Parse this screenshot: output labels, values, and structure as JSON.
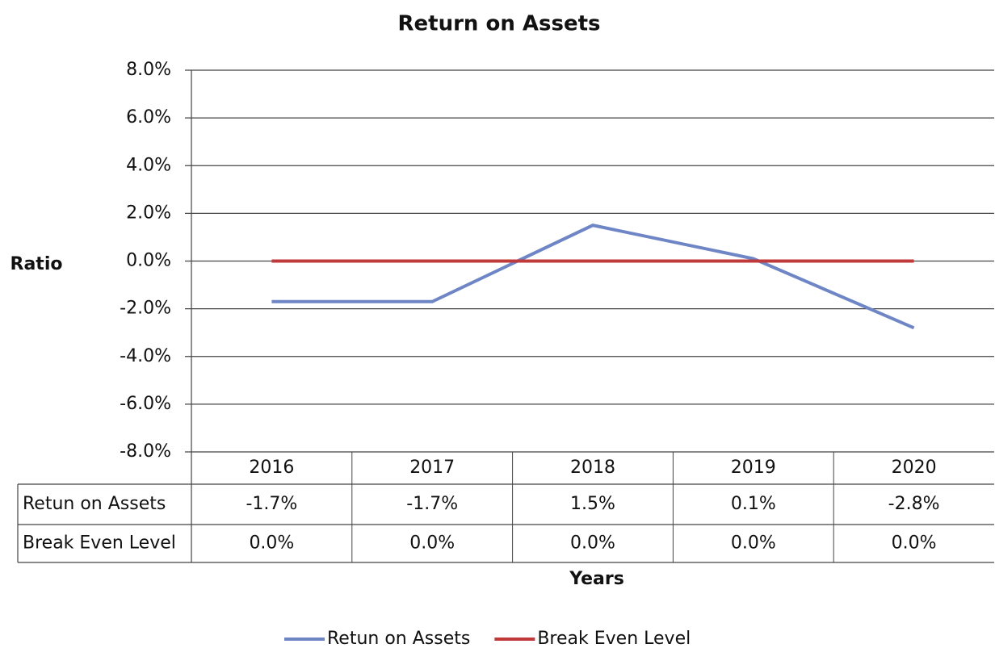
{
  "chart_data": {
    "type": "line",
    "title": "Return on Assets",
    "y_label": "Ratio",
    "x_label": "Years",
    "categories": [
      "2016",
      "2017",
      "2018",
      "2019",
      "2020"
    ],
    "series": [
      {
        "name": "Retun on Assets",
        "color": "#6f86c6",
        "values": [
          -1.7,
          -1.7,
          1.5,
          0.1,
          -2.8
        ],
        "value_labels": [
          "-1.7%",
          "-1.7%",
          "1.5%",
          "0.1%",
          "-2.8%"
        ]
      },
      {
        "name": "Break Even Level",
        "color": "#c0393b",
        "values": [
          0,
          0,
          0,
          0,
          0
        ],
        "value_labels": [
          "0.0%",
          "0.0%",
          "0.0%",
          "0.0%",
          "0.0%"
        ]
      }
    ],
    "ylim": [
      -8,
      8
    ],
    "yticks": [
      {
        "value": -8,
        "label": "-8.0%"
      },
      {
        "value": -6,
        "label": "-6.0%"
      },
      {
        "value": -4,
        "label": "-4.0%"
      },
      {
        "value": -2,
        "label": "-2.0%"
      },
      {
        "value": 0,
        "label": "0.0%"
      },
      {
        "value": 2,
        "label": "2.0%"
      },
      {
        "value": 4,
        "label": "4.0%"
      },
      {
        "value": 6,
        "label": "6.0%"
      },
      {
        "value": 8,
        "label": "8.0%"
      }
    ],
    "grid": true,
    "legend": "bottom",
    "data_table": true
  }
}
